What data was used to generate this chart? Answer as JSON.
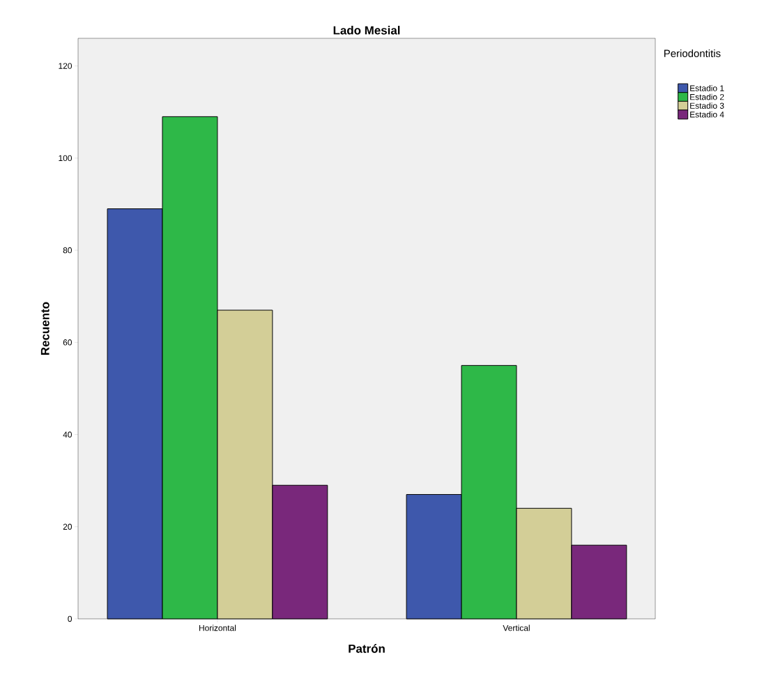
{
  "chart_data": {
    "type": "bar",
    "title": "Lado  Mesial",
    "xlabel": "Patrón",
    "ylabel": "Recuento",
    "legend_title": "Periodontitis",
    "legend": "top right",
    "grid": false,
    "categories": [
      "Horizontal",
      "Vertical"
    ],
    "series": [
      {
        "name": "Estadio 1",
        "color": "#3e58ac",
        "values": [
          89,
          27
        ]
      },
      {
        "name": "Estadio 2",
        "color": "#2eb848",
        "values": [
          109,
          55
        ]
      },
      {
        "name": "Estadio 3",
        "color": "#d3ce97",
        "values": [
          67,
          24
        ]
      },
      {
        "name": "Estadio 4",
        "color": "#79287b",
        "values": [
          29,
          16
        ]
      }
    ],
    "ylim": [
      0,
      126
    ],
    "yticks": [
      0,
      20,
      40,
      60,
      80,
      100,
      120
    ]
  }
}
